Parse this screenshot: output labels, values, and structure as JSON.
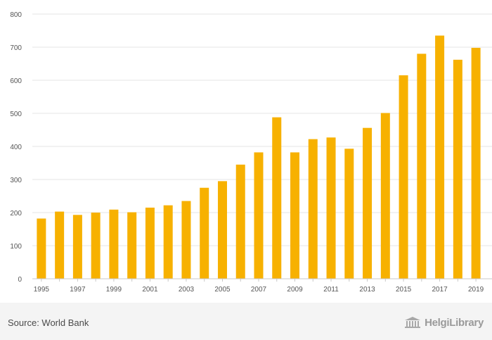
{
  "chart_data": {
    "type": "bar",
    "title": "",
    "xlabel": "",
    "ylabel": "",
    "ylim": [
      0,
      800
    ],
    "yticks": [
      0,
      100,
      200,
      300,
      400,
      500,
      600,
      700,
      800
    ],
    "categories": [
      "1995",
      "1996",
      "1997",
      "1998",
      "1999",
      "2000",
      "2001",
      "2002",
      "2003",
      "2004",
      "2005",
      "2006",
      "2007",
      "2008",
      "2009",
      "2010",
      "2011",
      "2012",
      "2013",
      "2014",
      "2015",
      "2016",
      "2017",
      "2018",
      "2019"
    ],
    "x_tick_labels": [
      "1995",
      "1997",
      "1999",
      "2001",
      "2003",
      "2005",
      "2007",
      "2009",
      "2011",
      "2013",
      "2015",
      "2017",
      "2019"
    ],
    "values": [
      182,
      203,
      193,
      200,
      209,
      201,
      215,
      222,
      235,
      275,
      295,
      345,
      382,
      488,
      382,
      422,
      427,
      393,
      456,
      501,
      615,
      680,
      735,
      662,
      698
    ],
    "bar_color": "#f7b100",
    "gridline_color": "#e6e6e6",
    "legend": "none",
    "grid": true
  },
  "footer": {
    "source": "Source: World Bank",
    "brand": "HelgiLibrary",
    "brand_icon": "library-building-icon"
  }
}
